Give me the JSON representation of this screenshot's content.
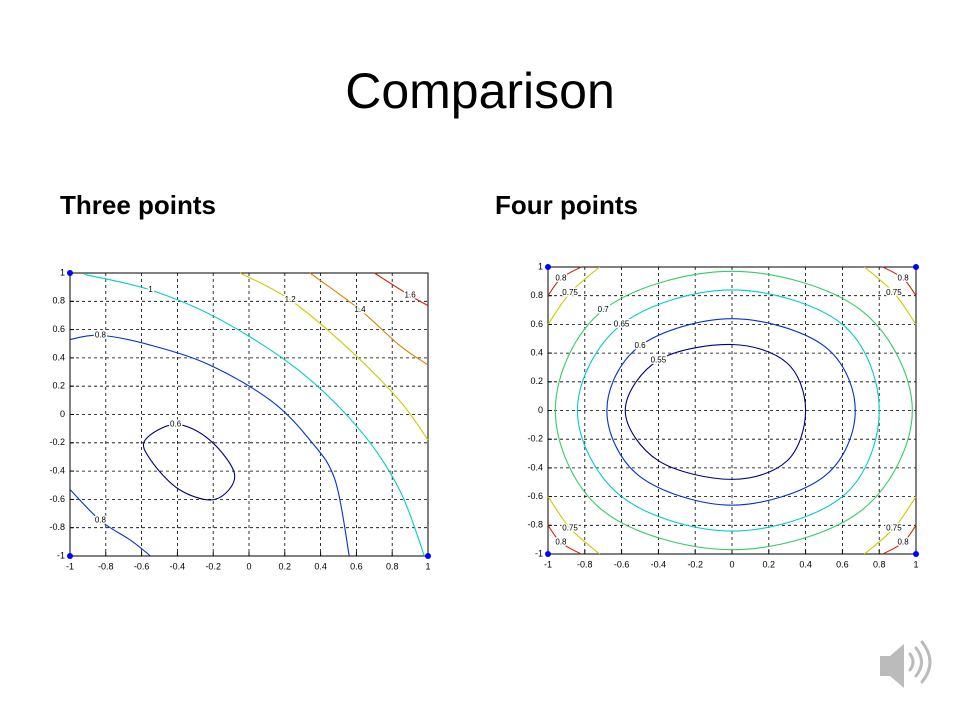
{
  "title": "Comparison",
  "chart_data": [
    {
      "type": "contour",
      "title": "Three points",
      "xlim": [
        -1,
        1
      ],
      "ylim": [
        -1,
        1
      ],
      "xticks": [
        -1,
        -0.8,
        -0.6,
        -0.4,
        -0.2,
        0,
        0.2,
        0.4,
        0.6,
        0.8,
        1
      ],
      "yticks": [
        -1,
        -0.8,
        -0.6,
        -0.4,
        -0.2,
        0,
        0.2,
        0.4,
        0.6,
        0.8,
        1
      ],
      "grid": true,
      "points": {
        "color": "#0000ff",
        "x": [
          -1,
          -1,
          1
        ],
        "y": [
          1,
          -1,
          -1
        ]
      },
      "contours": [
        {
          "level": 0.6,
          "color": "#00007f",
          "x": [
            -0.58,
            -0.41,
            -0.22,
            -0.08,
            -0.19,
            -0.39,
            -0.55,
            -0.58
          ],
          "y": [
            -0.18,
            -0.07,
            -0.18,
            -0.43,
            -0.6,
            -0.53,
            -0.32,
            -0.18
          ]
        },
        {
          "level": 0.8,
          "color": "#0033cc",
          "x": [
            -1,
            -0.83,
            -0.55,
            -0.22,
            0.12,
            0.34,
            0.48,
            0.56,
            null,
            -1,
            -0.83,
            -0.66,
            -0.55
          ],
          "y": [
            0.53,
            0.56,
            0.49,
            0.35,
            0.1,
            -0.18,
            -0.46,
            -1,
            null,
            -0.53,
            -0.75,
            -0.89,
            -1
          ]
        },
        {
          "level": 1,
          "color": "#00cccc",
          "x": [
            -0.92,
            -0.55,
            -0.16,
            0.28,
            0.62,
            0.84,
            0.98
          ],
          "y": [
            0.99,
            0.88,
            0.67,
            0.31,
            -0.11,
            -0.53,
            -1
          ]
        },
        {
          "level": 1.2,
          "color": "#cccc00",
          "x": [
            -0.05,
            0.23,
            0.56,
            0.84,
            1
          ],
          "y": [
            1,
            0.81,
            0.46,
            0.1,
            -0.18
          ]
        },
        {
          "level": 1.4,
          "color": "#e08000",
          "x": [
            0.34,
            0.62,
            0.84,
            1
          ],
          "y": [
            1,
            0.74,
            0.49,
            0.35
          ]
        },
        {
          "level": 1.6,
          "color": "#cc2200",
          "x": [
            0.7,
            0.9,
            1
          ],
          "y": [
            1,
            0.84,
            0.77
          ]
        }
      ]
    },
    {
      "type": "contour",
      "title": "Four points",
      "xlim": [
        -1,
        1
      ],
      "ylim": [
        -1,
        1
      ],
      "xticks": [
        -1,
        -0.8,
        -0.6,
        -0.4,
        -0.2,
        0,
        0.2,
        0.4,
        0.6,
        0.8,
        1
      ],
      "yticks": [
        -1,
        -0.8,
        -0.6,
        -0.4,
        -0.2,
        0,
        0.2,
        0.4,
        0.6,
        0.8,
        1
      ],
      "grid": true,
      "points": {
        "color": "#0000ff",
        "x": [
          -1,
          1,
          -1,
          1
        ],
        "y": [
          1,
          1,
          -1,
          -1
        ]
      },
      "contours": [
        {
          "level": 0.55,
          "color": "#00007f",
          "x": [
            -0.58,
            -0.4,
            0,
            0.3,
            0.4,
            0.3,
            0,
            -0.4,
            -0.58
          ],
          "y": [
            0,
            0.35,
            0.46,
            0.33,
            0,
            -0.35,
            -0.48,
            -0.35,
            0
          ]
        },
        {
          "level": 0.6,
          "color": "#0033cc",
          "x": [
            -0.68,
            -0.5,
            0,
            0.5,
            0.67,
            0.5,
            0,
            -0.5,
            -0.68
          ],
          "y": [
            0,
            0.45,
            0.64,
            0.45,
            0,
            -0.46,
            -0.66,
            -0.46,
            0
          ]
        },
        {
          "level": 0.65,
          "color": "#00cccc",
          "x": [
            -0.84,
            -0.6,
            0,
            0.6,
            0.8,
            0.6,
            0,
            -0.6,
            -0.84
          ],
          "y": [
            0,
            0.6,
            0.84,
            0.6,
            0,
            -0.6,
            -0.84,
            -0.6,
            0
          ]
        },
        {
          "level": 0.7,
          "color": "#33cc66",
          "x": [
            -0.96,
            -0.7,
            0,
            0.7,
            0.98,
            0.7,
            0,
            -0.7,
            -0.96
          ],
          "y": [
            0,
            0.7,
            0.97,
            0.7,
            0,
            -0.7,
            -0.97,
            -0.7,
            0
          ]
        },
        {
          "level": 0.75,
          "color": "#cccc00",
          "x": [
            -1,
            -0.88,
            -0.72,
            null,
            0.72,
            0.88,
            1,
            null,
            1,
            0.88,
            0.72,
            null,
            -0.72,
            -0.88,
            -1
          ],
          "y": [
            0.6,
            0.82,
            1,
            null,
            1,
            0.82,
            0.6,
            null,
            -0.6,
            -0.82,
            -1,
            null,
            -1,
            -0.82,
            -0.6
          ]
        },
        {
          "level": 0.8,
          "color": "#cc2200",
          "x": [
            -1,
            -0.93,
            -0.82,
            null,
            0.82,
            0.93,
            1,
            null,
            1,
            0.93,
            0.82,
            null,
            -0.82,
            -0.93,
            -1
          ],
          "y": [
            0.8,
            0.92,
            1,
            null,
            1,
            0.92,
            0.8,
            null,
            -0.8,
            -0.92,
            -1,
            null,
            -1,
            -0.92,
            -0.8
          ]
        }
      ]
    }
  ]
}
